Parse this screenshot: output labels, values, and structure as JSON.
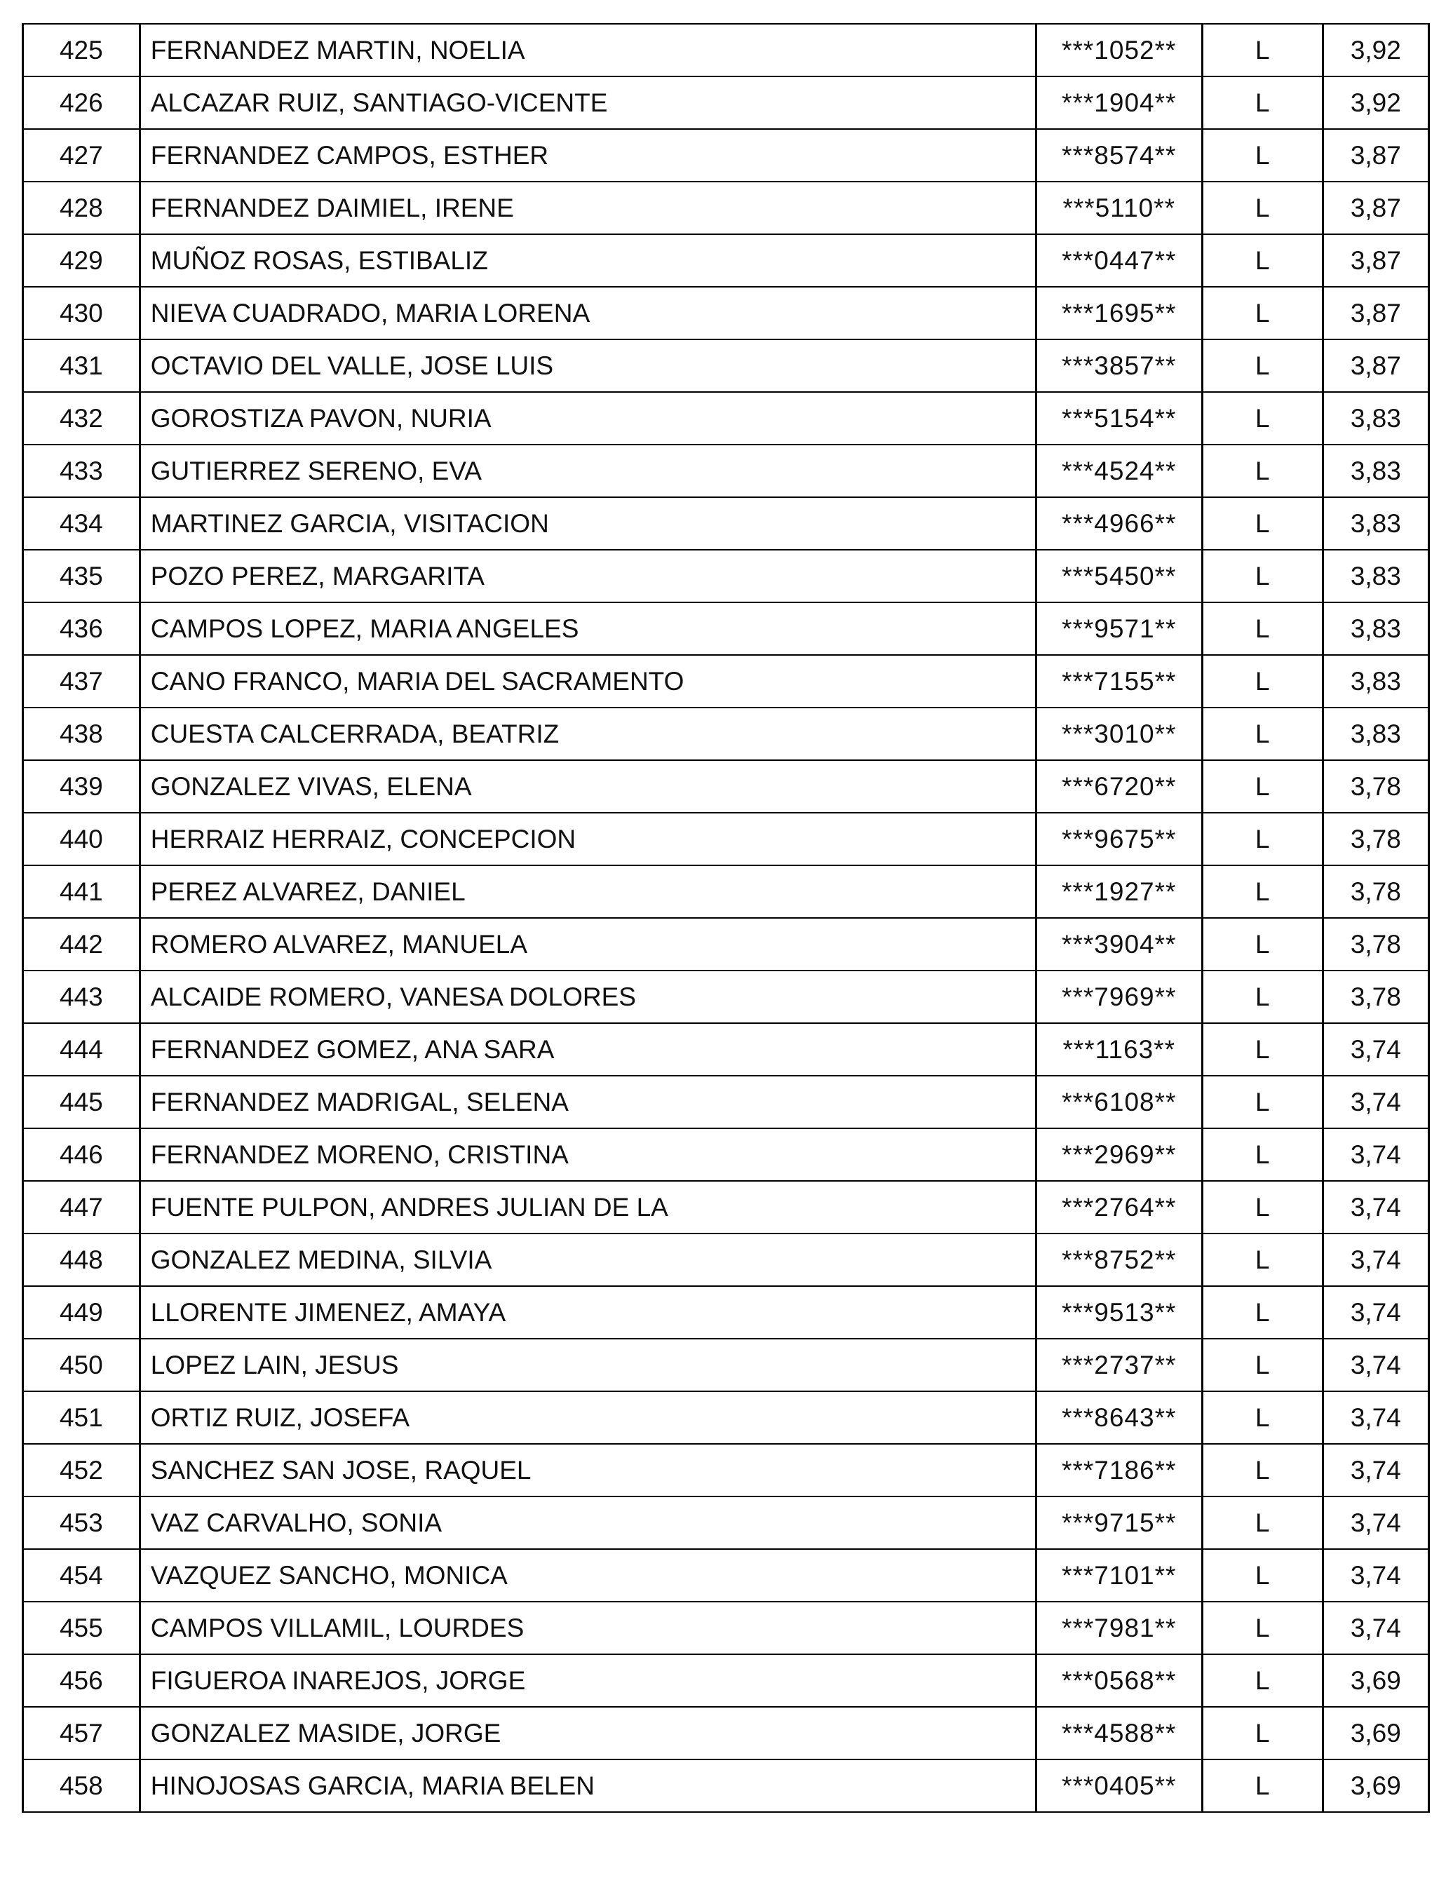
{
  "rows": [
    {
      "num": "425",
      "name": "FERNANDEZ MARTIN, NOELIA",
      "id": "***1052**",
      "type": "L",
      "score": "3,92"
    },
    {
      "num": "426",
      "name": "ALCAZAR RUIZ, SANTIAGO-VICENTE",
      "id": "***1904**",
      "type": "L",
      "score": "3,92"
    },
    {
      "num": "427",
      "name": "FERNANDEZ CAMPOS, ESTHER",
      "id": "***8574**",
      "type": "L",
      "score": "3,87"
    },
    {
      "num": "428",
      "name": "FERNANDEZ DAIMIEL, IRENE",
      "id": "***5110**",
      "type": "L",
      "score": "3,87"
    },
    {
      "num": "429",
      "name": "MUÑOZ ROSAS, ESTIBALIZ",
      "id": "***0447**",
      "type": "L",
      "score": "3,87"
    },
    {
      "num": "430",
      "name": "NIEVA CUADRADO, MARIA LORENA",
      "id": "***1695**",
      "type": "L",
      "score": "3,87"
    },
    {
      "num": "431",
      "name": "OCTAVIO DEL VALLE, JOSE LUIS",
      "id": "***3857**",
      "type": "L",
      "score": "3,87"
    },
    {
      "num": "432",
      "name": "GOROSTIZA PAVON, NURIA",
      "id": "***5154**",
      "type": "L",
      "score": "3,83"
    },
    {
      "num": "433",
      "name": "GUTIERREZ SERENO, EVA",
      "id": "***4524**",
      "type": "L",
      "score": "3,83"
    },
    {
      "num": "434",
      "name": "MARTINEZ GARCIA, VISITACION",
      "id": "***4966**",
      "type": "L",
      "score": "3,83"
    },
    {
      "num": "435",
      "name": "POZO PEREZ, MARGARITA",
      "id": "***5450**",
      "type": "L",
      "score": "3,83"
    },
    {
      "num": "436",
      "name": "CAMPOS LOPEZ, MARIA ANGELES",
      "id": "***9571**",
      "type": "L",
      "score": "3,83"
    },
    {
      "num": "437",
      "name": "CANO FRANCO, MARIA DEL SACRAMENTO",
      "id": "***7155**",
      "type": "L",
      "score": "3,83"
    },
    {
      "num": "438",
      "name": "CUESTA CALCERRADA, BEATRIZ",
      "id": "***3010**",
      "type": "L",
      "score": "3,83"
    },
    {
      "num": "439",
      "name": "GONZALEZ VIVAS, ELENA",
      "id": "***6720**",
      "type": "L",
      "score": "3,78"
    },
    {
      "num": "440",
      "name": "HERRAIZ HERRAIZ, CONCEPCION",
      "id": "***9675**",
      "type": "L",
      "score": "3,78"
    },
    {
      "num": "441",
      "name": "PEREZ ALVAREZ, DANIEL",
      "id": "***1927**",
      "type": "L",
      "score": "3,78"
    },
    {
      "num": "442",
      "name": "ROMERO ALVAREZ, MANUELA",
      "id": "***3904**",
      "type": "L",
      "score": "3,78"
    },
    {
      "num": "443",
      "name": "ALCAIDE ROMERO, VANESA DOLORES",
      "id": "***7969**",
      "type": "L",
      "score": "3,78"
    },
    {
      "num": "444",
      "name": "FERNANDEZ GOMEZ, ANA SARA",
      "id": "***1163**",
      "type": "L",
      "score": "3,74"
    },
    {
      "num": "445",
      "name": "FERNANDEZ MADRIGAL, SELENA",
      "id": "***6108**",
      "type": "L",
      "score": "3,74"
    },
    {
      "num": "446",
      "name": "FERNANDEZ MORENO, CRISTINA",
      "id": "***2969**",
      "type": "L",
      "score": "3,74"
    },
    {
      "num": "447",
      "name": "FUENTE PULPON, ANDRES JULIAN DE LA",
      "id": "***2764**",
      "type": "L",
      "score": "3,74"
    },
    {
      "num": "448",
      "name": "GONZALEZ MEDINA, SILVIA",
      "id": "***8752**",
      "type": "L",
      "score": "3,74"
    },
    {
      "num": "449",
      "name": "LLORENTE JIMENEZ, AMAYA",
      "id": "***9513**",
      "type": "L",
      "score": "3,74"
    },
    {
      "num": "450",
      "name": "LOPEZ LAIN, JESUS",
      "id": "***2737**",
      "type": "L",
      "score": "3,74"
    },
    {
      "num": "451",
      "name": "ORTIZ RUIZ, JOSEFA",
      "id": "***8643**",
      "type": "L",
      "score": "3,74"
    },
    {
      "num": "452",
      "name": "SANCHEZ SAN JOSE, RAQUEL",
      "id": "***7186**",
      "type": "L",
      "score": "3,74"
    },
    {
      "num": "453",
      "name": "VAZ CARVALHO, SONIA",
      "id": "***9715**",
      "type": "L",
      "score": "3,74"
    },
    {
      "num": "454",
      "name": "VAZQUEZ SANCHO, MONICA",
      "id": "***7101**",
      "type": "L",
      "score": "3,74"
    },
    {
      "num": "455",
      "name": "CAMPOS VILLAMIL, LOURDES",
      "id": "***7981**",
      "type": "L",
      "score": "3,74"
    },
    {
      "num": "456",
      "name": "FIGUEROA INAREJOS, JORGE",
      "id": "***0568**",
      "type": "L",
      "score": "3,69"
    },
    {
      "num": "457",
      "name": "GONZALEZ MASIDE, JORGE",
      "id": "***4588**",
      "type": "L",
      "score": "3,69"
    },
    {
      "num": "458",
      "name": "HINOJOSAS GARCIA, MARIA BELEN",
      "id": "***0405**",
      "type": "L",
      "score": "3,69"
    }
  ]
}
